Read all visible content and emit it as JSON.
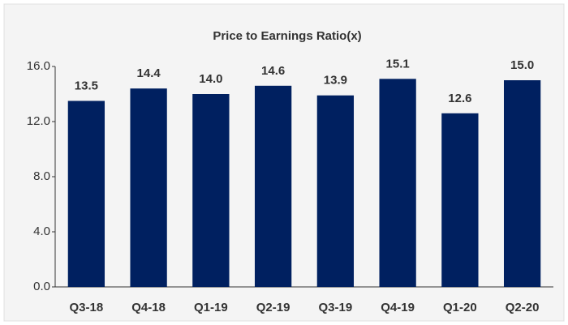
{
  "chart_data": {
    "type": "bar",
    "title": "Price to Earnings Ratio(x)",
    "categories": [
      "Q3-18",
      "Q4-18",
      "Q1-19",
      "Q2-19",
      "Q3-19",
      "Q4-19",
      "Q1-20",
      "Q2-20"
    ],
    "values": [
      13.5,
      14.4,
      14,
      14.6,
      13.9,
      15.1,
      12.6,
      15
    ],
    "value_labels": [
      "13.5",
      "14.4",
      "14.0",
      "14.6",
      "13.9",
      "15.1",
      "12.6",
      "15.0"
    ],
    "color": "#002060",
    "ylim": [
      0,
      16
    ],
    "yticks": [
      {
        "value": 0,
        "label": "0.0"
      },
      {
        "value": 4,
        "label": "4.0"
      },
      {
        "value": 8,
        "label": "8.0"
      },
      {
        "value": 12,
        "label": "12.0"
      },
      {
        "value": 16,
        "label": "16.0"
      }
    ],
    "grid": false
  }
}
